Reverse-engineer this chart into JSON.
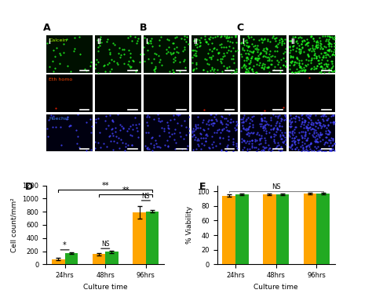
{
  "panel_labels": [
    "A",
    "B",
    "C",
    "D",
    "E"
  ],
  "row_labels": [
    "Calcein",
    "Eth homo",
    "Hoechst"
  ],
  "col_labels": [
    "I",
    "II"
  ],
  "green_color": "#22aa22",
  "orange_color": "#FFA500",
  "bar_colors": [
    "#FFA500",
    "#22aa22"
  ],
  "D_categories": [
    "24hrs",
    "48hrs",
    "96hrs"
  ],
  "D_orange_values": [
    80,
    155,
    790
  ],
  "D_green_values": [
    170,
    190,
    805
  ],
  "D_orange_errors": [
    15,
    20,
    90
  ],
  "D_green_errors": [
    15,
    15,
    20
  ],
  "D_ylabel": "Cell count/mm²",
  "D_xlabel": "Culture time",
  "D_ylim": [
    0,
    1200
  ],
  "D_yticks": [
    0,
    200,
    400,
    600,
    800,
    1000,
    1200
  ],
  "E_categories": [
    "24hrs",
    "48hrs",
    "96hrs"
  ],
  "E_orange_values": [
    94,
    96,
    97
  ],
  "E_green_values": [
    96,
    96,
    97
  ],
  "E_orange_errors": [
    1.5,
    1.2,
    1.0
  ],
  "E_green_errors": [
    1.0,
    1.0,
    1.0
  ],
  "E_ylabel": "% Viability",
  "E_xlabel": "Culture time",
  "E_ylim": [
    0,
    100
  ],
  "E_yticks": [
    0,
    20,
    40,
    60,
    80,
    100
  ],
  "D_sig_labels": [
    "*",
    "NS",
    "NS",
    "**",
    "**"
  ],
  "background_color": "#ffffff",
  "image_bg_green": "#001000",
  "image_bg_red": "#000000",
  "image_bg_blue": "#000010"
}
